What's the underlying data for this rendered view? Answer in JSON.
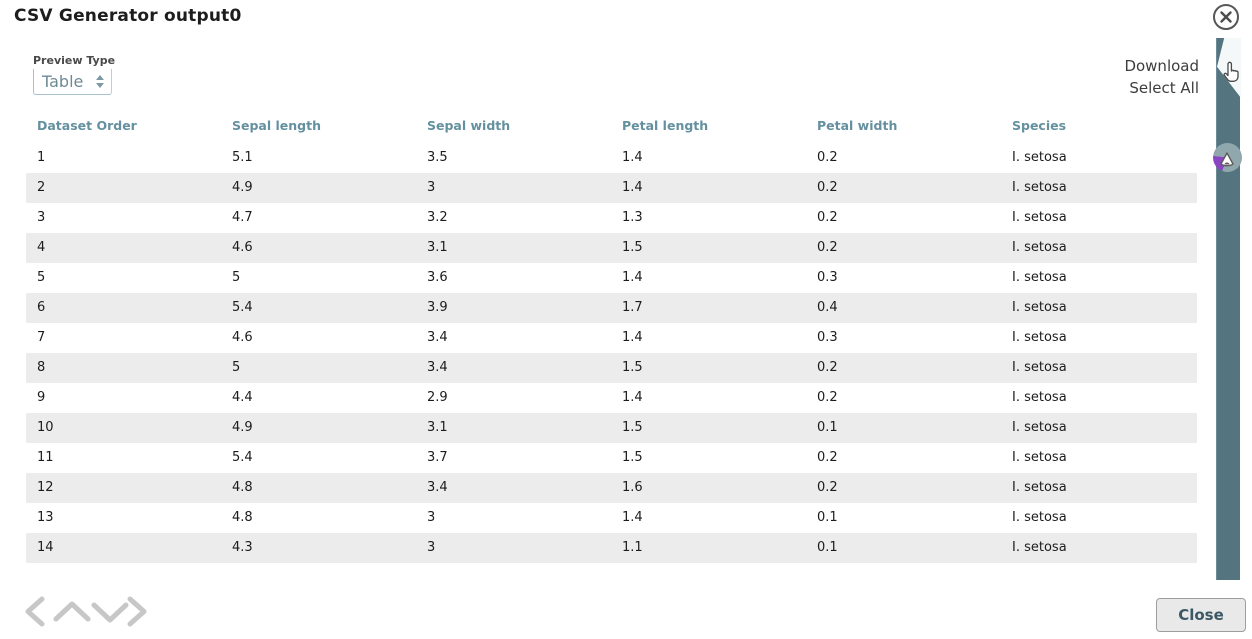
{
  "window": {
    "title": "CSV Generator output0"
  },
  "controls": {
    "preview_type": {
      "label": "Preview Type",
      "value": "Table"
    },
    "download_label": "Download",
    "select_all_label": "Select All"
  },
  "table": {
    "columns": [
      "Dataset Order",
      "Sepal length",
      "Sepal width",
      "Petal length",
      "Petal width",
      "Species"
    ],
    "rows": [
      [
        "1",
        "5.1",
        "3.5",
        "1.4",
        "0.2",
        "I. setosa"
      ],
      [
        "2",
        "4.9",
        "3",
        "1.4",
        "0.2",
        "I. setosa"
      ],
      [
        "3",
        "4.7",
        "3.2",
        "1.3",
        "0.2",
        "I. setosa"
      ],
      [
        "4",
        "4.6",
        "3.1",
        "1.5",
        "0.2",
        "I. setosa"
      ],
      [
        "5",
        "5",
        "3.6",
        "1.4",
        "0.3",
        "I. setosa"
      ],
      [
        "6",
        "5.4",
        "3.9",
        "1.7",
        "0.4",
        "I. setosa"
      ],
      [
        "7",
        "4.6",
        "3.4",
        "1.4",
        "0.3",
        "I. setosa"
      ],
      [
        "8",
        "5",
        "3.4",
        "1.5",
        "0.2",
        "I. setosa"
      ],
      [
        "9",
        "4.4",
        "2.9",
        "1.4",
        "0.2",
        "I. setosa"
      ],
      [
        "10",
        "4.9",
        "3.1",
        "1.5",
        "0.1",
        "I. setosa"
      ],
      [
        "11",
        "5.4",
        "3.7",
        "1.5",
        "0.2",
        "I. setosa"
      ],
      [
        "12",
        "4.8",
        "3.4",
        "1.6",
        "0.2",
        "I. setosa"
      ],
      [
        "13",
        "4.8",
        "3",
        "1.4",
        "0.1",
        "I. setosa"
      ],
      [
        "14",
        "4.3",
        "3",
        "1.1",
        "0.1",
        "I. setosa"
      ]
    ]
  },
  "footer": {
    "close_label": "Close"
  },
  "icons": {
    "close_circle": "close-circle-icon",
    "dropdown_spinner": "up-down-spinner-icon",
    "nav": [
      "chevron-left-icon",
      "chevron-up-icon",
      "chevron-down-icon",
      "chevron-right-icon"
    ],
    "cursor": "hand-pointer-cursor"
  },
  "colors": {
    "header_accent": "#64909f",
    "scrollbar": "#547480",
    "row_stripe": "#ececec",
    "avatar_purple": "#8b44c2",
    "close_button_text": "#3c5865"
  }
}
